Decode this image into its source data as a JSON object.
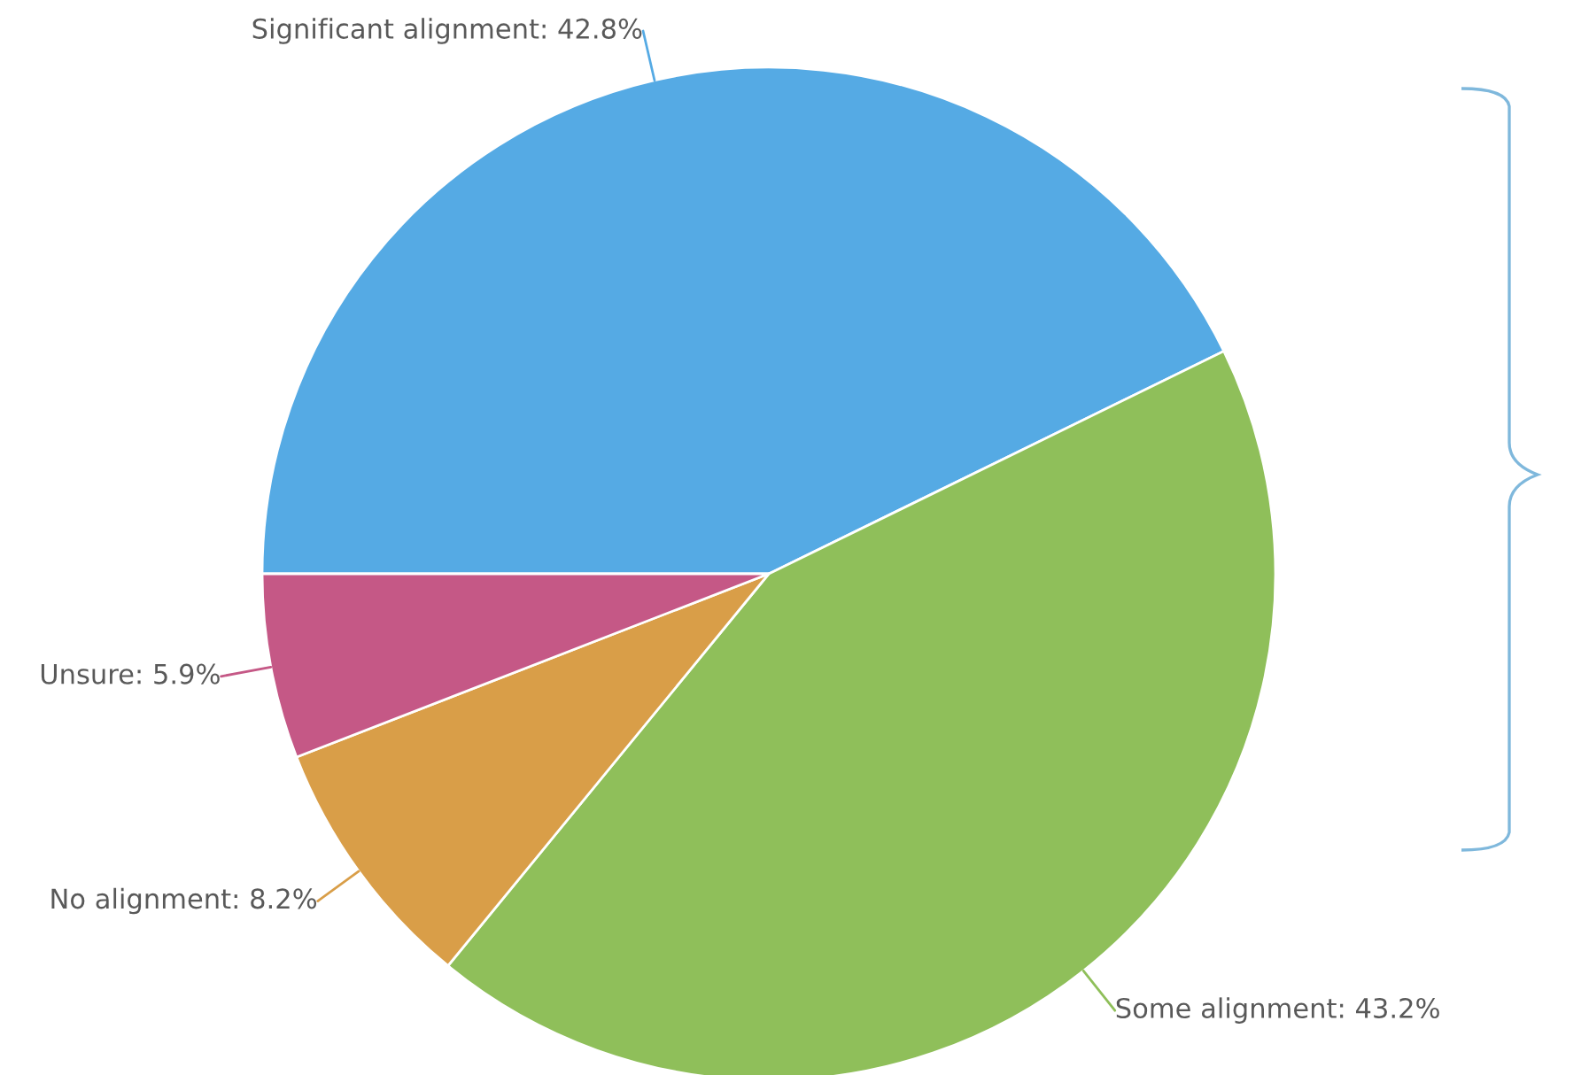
{
  "chart_data": {
    "type": "pie",
    "categories": [
      "Significant alignment",
      "Some alignment",
      "No alignment",
      "Unsure"
    ],
    "values": [
      42.8,
      43.2,
      8.2,
      5.9
    ],
    "colors": [
      "#55aae4",
      "#8fbf5a",
      "#d99e48",
      "#c55886"
    ],
    "value_labels": [
      ": 42.8%",
      ": 43.2%",
      ": 8.2%",
      ": 5.9%"
    ],
    "legend": false
  }
}
